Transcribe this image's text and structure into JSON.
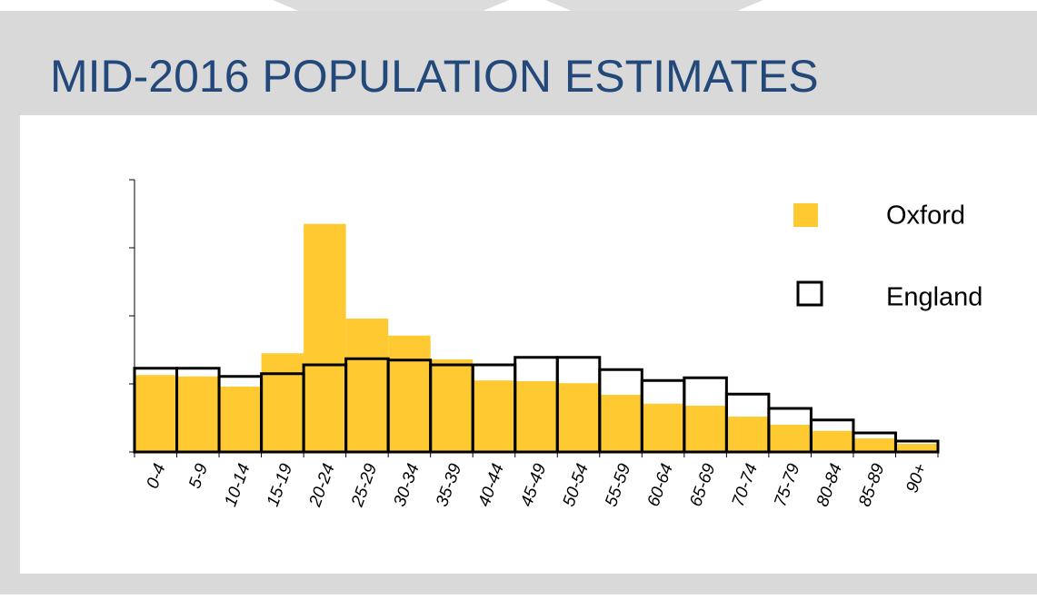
{
  "chart_data": {
    "type": "bar",
    "title": "MID-2016 POPULATION ESTIMATES",
    "categories": [
      "0-4",
      "5-9",
      "10-14",
      "15-19",
      "20-24",
      "25-29",
      "30-34",
      "35-39",
      "40-44",
      "45-49",
      "50-54",
      "55-59",
      "60-64",
      "65-69",
      "70-74",
      "75-79",
      "80-84",
      "85-89",
      "90+"
    ],
    "series": [
      {
        "name": "Oxford",
        "color": "#ffc931",
        "values": [
          1.13,
          1.11,
          0.96,
          1.45,
          3.35,
          1.96,
          1.71,
          1.36,
          1.05,
          1.04,
          1.01,
          0.84,
          0.71,
          0.68,
          0.52,
          0.4,
          0.31,
          0.2,
          0.12
        ]
      },
      {
        "name": "England",
        "color": "#000000",
        "values": [
          1.23,
          1.23,
          1.11,
          1.15,
          1.28,
          1.37,
          1.35,
          1.28,
          1.28,
          1.39,
          1.39,
          1.21,
          1.05,
          1.09,
          0.85,
          0.64,
          0.47,
          0.28,
          0.16
        ]
      }
    ],
    "ylim": [
      0,
      4
    ],
    "yticks": [
      0,
      1,
      2,
      3,
      4
    ],
    "legend": "upper right"
  }
}
